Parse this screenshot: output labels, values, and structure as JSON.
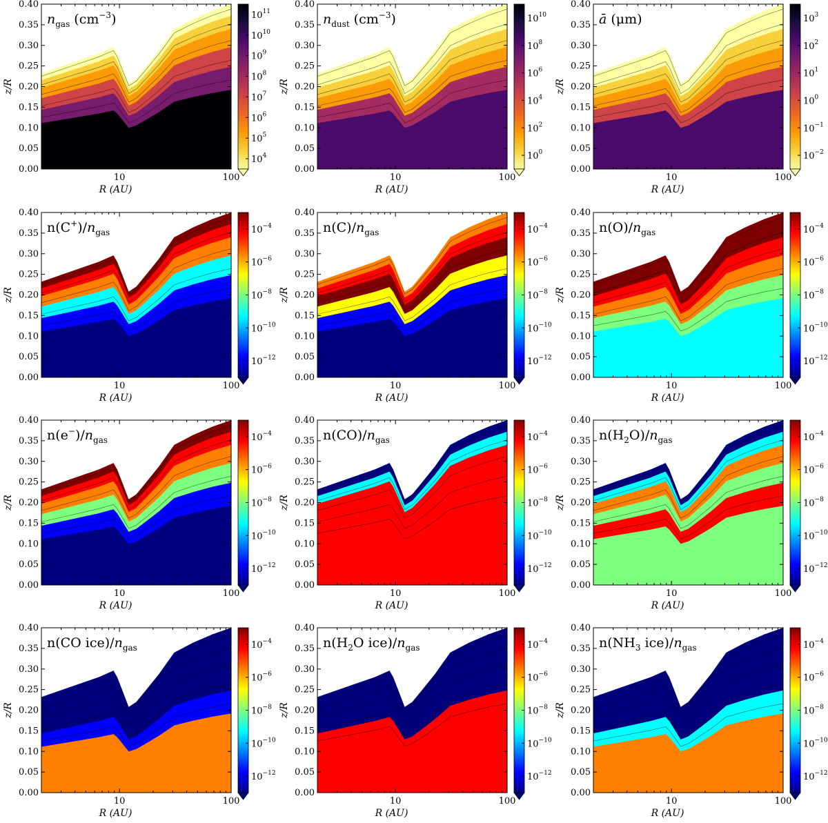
{
  "chart_data": [
    {
      "type": "heatmap",
      "title": "n_gas (cm^-3)",
      "title_main": "n",
      "title_sub": "gas",
      "title_suffix": " (cm",
      "title_sup": "−3",
      "title_end": ")",
      "colormap": "inferno_r",
      "colorbar": {
        "type": "log",
        "labels": [
          {
            "base": "10",
            "exp": "4"
          },
          {
            "base": "10",
            "exp": "5"
          },
          {
            "base": "10",
            "exp": "6"
          },
          {
            "base": "10",
            "exp": "7"
          },
          {
            "base": "10",
            "exp": "8"
          },
          {
            "base": "10",
            "exp": "9"
          },
          {
            "base": "10",
            "exp": "10"
          },
          {
            "base": "10",
            "exp": "11"
          }
        ]
      },
      "xlabel": "R (AU)",
      "ylabel": "z/R",
      "xlim": [
        2,
        100
      ],
      "ylim": [
        0,
        0.4
      ],
      "xticks": [
        "10",
        "100"
      ],
      "yticks": [
        "0.00",
        "0.05",
        "0.10",
        "0.15",
        "0.20",
        "0.25",
        "0.30",
        "0.35",
        "0.40"
      ]
    },
    {
      "type": "heatmap",
      "title": "n_dust (cm^-3)",
      "title_main": "n",
      "title_sub": "dust",
      "title_suffix": " (cm",
      "title_sup": "−3",
      "title_end": ")",
      "colormap": "inferno_r",
      "colorbar": {
        "type": "log",
        "labels": [
          {
            "base": "10",
            "exp": "0"
          },
          {
            "base": "10",
            "exp": "2"
          },
          {
            "base": "10",
            "exp": "4"
          },
          {
            "base": "10",
            "exp": "6"
          },
          {
            "base": "10",
            "exp": "8"
          },
          {
            "base": "10",
            "exp": "10"
          }
        ]
      },
      "xlabel": "R (AU)",
      "ylabel": "z/R",
      "xlim": [
        2,
        100
      ],
      "ylim": [
        0,
        0.4
      ],
      "xticks": [
        "10",
        "100"
      ],
      "yticks": [
        "0.00",
        "0.05",
        "0.10",
        "0.15",
        "0.20",
        "0.25",
        "0.30",
        "0.35",
        "0.40"
      ]
    },
    {
      "type": "heatmap",
      "title": "ā (μm)",
      "title_main": "ā",
      "title_sub": "",
      "title_suffix": " (μm)",
      "title_sup": "",
      "title_end": "",
      "colormap": "inferno_r",
      "colorbar": {
        "type": "log",
        "labels": [
          {
            "base": "10",
            "exp": "−2"
          },
          {
            "base": "10",
            "exp": "−1"
          },
          {
            "base": "10",
            "exp": "0"
          },
          {
            "base": "10",
            "exp": "1"
          },
          {
            "base": "10",
            "exp": "2"
          },
          {
            "base": "10",
            "exp": "3"
          }
        ]
      },
      "xlabel": "R (AU)",
      "ylabel": "z/R",
      "xlim": [
        2,
        100
      ],
      "ylim": [
        0,
        0.4
      ],
      "xticks": [
        "10",
        "100"
      ],
      "yticks": [
        "0.00",
        "0.05",
        "0.10",
        "0.15",
        "0.20",
        "0.25",
        "0.30",
        "0.35",
        "0.40"
      ]
    },
    {
      "type": "heatmap",
      "title": "n(C+)/n_gas",
      "title_main": "n(C",
      "title_sup": "+",
      "title_mid": ")/",
      "title_main2": "n",
      "title_sub": "gas",
      "colormap": "jet",
      "colorbar": {
        "type": "log",
        "labels": [
          {
            "base": "10",
            "exp": "−12"
          },
          {
            "base": "10",
            "exp": "−10"
          },
          {
            "base": "10",
            "exp": "−8"
          },
          {
            "base": "10",
            "exp": "−6"
          },
          {
            "base": "10",
            "exp": "−4"
          }
        ]
      },
      "xlabel": "R (AU)",
      "ylabel": "z/R",
      "xlim": [
        2,
        100
      ],
      "ylim": [
        0,
        0.4
      ],
      "xticks": [
        "10",
        "100"
      ],
      "yticks": [
        "0.00",
        "0.05",
        "0.10",
        "0.15",
        "0.20",
        "0.25",
        "0.30",
        "0.35",
        "0.40"
      ]
    },
    {
      "type": "heatmap",
      "title": "n(C)/n_gas",
      "title_main": "n(C)/",
      "title_sup": "",
      "title_mid": "",
      "title_main2": "n",
      "title_sub": "gas",
      "colormap": "jet",
      "colorbar": {
        "type": "log",
        "labels": [
          {
            "base": "10",
            "exp": "−12"
          },
          {
            "base": "10",
            "exp": "−10"
          },
          {
            "base": "10",
            "exp": "−8"
          },
          {
            "base": "10",
            "exp": "−6"
          },
          {
            "base": "10",
            "exp": "−4"
          }
        ]
      },
      "xlabel": "R (AU)",
      "ylabel": "z/R",
      "xlim": [
        2,
        100
      ],
      "ylim": [
        0,
        0.4
      ],
      "xticks": [
        "10",
        "100"
      ],
      "yticks": [
        "0.00",
        "0.05",
        "0.10",
        "0.15",
        "0.20",
        "0.25",
        "0.30",
        "0.35",
        "0.40"
      ]
    },
    {
      "type": "heatmap",
      "title": "n(O)/n_gas",
      "title_main": "n(O)/",
      "title_sup": "",
      "title_mid": "",
      "title_main2": "n",
      "title_sub": "gas",
      "colormap": "jet",
      "colorbar": {
        "type": "log",
        "labels": [
          {
            "base": "10",
            "exp": "−12"
          },
          {
            "base": "10",
            "exp": "−10"
          },
          {
            "base": "10",
            "exp": "−8"
          },
          {
            "base": "10",
            "exp": "−6"
          },
          {
            "base": "10",
            "exp": "−4"
          }
        ]
      },
      "xlabel": "R (AU)",
      "ylabel": "z/R",
      "xlim": [
        2,
        100
      ],
      "ylim": [
        0,
        0.4
      ],
      "xticks": [
        "10",
        "100"
      ],
      "yticks": [
        "0.00",
        "0.05",
        "0.10",
        "0.15",
        "0.20",
        "0.25",
        "0.30",
        "0.35",
        "0.40"
      ]
    },
    {
      "type": "heatmap",
      "title": "n(e−)/n_gas",
      "title_main": "n(e",
      "title_sup": "−",
      "title_mid": ")/",
      "title_main2": "n",
      "title_sub": "gas",
      "colormap": "jet",
      "colorbar": {
        "type": "log",
        "labels": [
          {
            "base": "10",
            "exp": "−12"
          },
          {
            "base": "10",
            "exp": "−10"
          },
          {
            "base": "10",
            "exp": "−8"
          },
          {
            "base": "10",
            "exp": "−6"
          },
          {
            "base": "10",
            "exp": "−4"
          }
        ]
      },
      "xlabel": "R (AU)",
      "ylabel": "z/R",
      "xlim": [
        2,
        100
      ],
      "ylim": [
        0,
        0.4
      ],
      "xticks": [
        "10",
        "100"
      ],
      "yticks": [
        "0.00",
        "0.05",
        "0.10",
        "0.15",
        "0.20",
        "0.25",
        "0.30",
        "0.35",
        "0.40"
      ]
    },
    {
      "type": "heatmap",
      "title": "n(CO)/n_gas",
      "title_main": "n(CO)/",
      "title_sup": "",
      "title_mid": "",
      "title_main2": "n",
      "title_sub": "gas",
      "colormap": "jet",
      "colorbar": {
        "type": "log",
        "labels": [
          {
            "base": "10",
            "exp": "−12"
          },
          {
            "base": "10",
            "exp": "−10"
          },
          {
            "base": "10",
            "exp": "−8"
          },
          {
            "base": "10",
            "exp": "−6"
          },
          {
            "base": "10",
            "exp": "−4"
          }
        ]
      },
      "xlabel": "R (AU)",
      "ylabel": "z/R",
      "xlim": [
        2,
        100
      ],
      "ylim": [
        0,
        0.4
      ],
      "xticks": [
        "10",
        "100"
      ],
      "yticks": [
        "0.00",
        "0.05",
        "0.10",
        "0.15",
        "0.20",
        "0.25",
        "0.30",
        "0.35",
        "0.40"
      ]
    },
    {
      "type": "heatmap",
      "title": "n(H2O)/n_gas",
      "title_main": "n(H",
      "title_sub0": "2",
      "title_mid": "O)/",
      "title_main2": "n",
      "title_sub": "gas",
      "colormap": "jet",
      "colorbar": {
        "type": "log",
        "labels": [
          {
            "base": "10",
            "exp": "−12"
          },
          {
            "base": "10",
            "exp": "−10"
          },
          {
            "base": "10",
            "exp": "−8"
          },
          {
            "base": "10",
            "exp": "−6"
          },
          {
            "base": "10",
            "exp": "−4"
          }
        ]
      },
      "xlabel": "R (AU)",
      "ylabel": "z/R",
      "xlim": [
        2,
        100
      ],
      "ylim": [
        0,
        0.4
      ],
      "xticks": [
        "10",
        "100"
      ],
      "yticks": [
        "0.00",
        "0.05",
        "0.10",
        "0.15",
        "0.20",
        "0.25",
        "0.30",
        "0.35",
        "0.40"
      ]
    },
    {
      "type": "heatmap",
      "title": "n(CO ice)/n_gas",
      "title_main": "n(CO ice)/",
      "title_sup": "",
      "title_mid": "",
      "title_main2": "n",
      "title_sub": "gas",
      "colormap": "jet",
      "colorbar": {
        "type": "log",
        "labels": [
          {
            "base": "10",
            "exp": "−12"
          },
          {
            "base": "10",
            "exp": "−10"
          },
          {
            "base": "10",
            "exp": "−8"
          },
          {
            "base": "10",
            "exp": "−6"
          },
          {
            "base": "10",
            "exp": "−4"
          }
        ]
      },
      "xlabel": "R (AU)",
      "ylabel": "z/R",
      "xlim": [
        2,
        100
      ],
      "ylim": [
        0,
        0.4
      ],
      "xticks": [
        "10",
        "100"
      ],
      "yticks": [
        "0.00",
        "0.05",
        "0.10",
        "0.15",
        "0.20",
        "0.25",
        "0.30",
        "0.35",
        "0.40"
      ]
    },
    {
      "type": "heatmap",
      "title": "n(H2O ice)/n_gas",
      "title_main": "n(H",
      "title_sub0": "2",
      "title_mid": "O ice)/",
      "title_main2": "n",
      "title_sub": "gas",
      "colormap": "jet",
      "colorbar": {
        "type": "log",
        "labels": [
          {
            "base": "10",
            "exp": "−12"
          },
          {
            "base": "10",
            "exp": "−10"
          },
          {
            "base": "10",
            "exp": "−8"
          },
          {
            "base": "10",
            "exp": "−6"
          },
          {
            "base": "10",
            "exp": "−4"
          }
        ]
      },
      "xlabel": "R (AU)",
      "ylabel": "z/R",
      "xlim": [
        2,
        100
      ],
      "ylim": [
        0,
        0.4
      ],
      "xticks": [
        "10",
        "100"
      ],
      "yticks": [
        "0.00",
        "0.05",
        "0.10",
        "0.15",
        "0.20",
        "0.25",
        "0.30",
        "0.35",
        "0.40"
      ]
    },
    {
      "type": "heatmap",
      "title": "n(NH3 ice)/n_gas",
      "title_main": "n(NH",
      "title_sub0": "3",
      "title_mid": " ice)/",
      "title_main2": "n",
      "title_sub": "gas",
      "colormap": "jet",
      "colorbar": {
        "type": "log",
        "labels": [
          {
            "base": "10",
            "exp": "−12"
          },
          {
            "base": "10",
            "exp": "−10"
          },
          {
            "base": "10",
            "exp": "−8"
          },
          {
            "base": "10",
            "exp": "−6"
          },
          {
            "base": "10",
            "exp": "−4"
          }
        ]
      },
      "xlabel": "R (AU)",
      "ylabel": "z/R",
      "xlim": [
        2,
        100
      ],
      "ylim": [
        0,
        0.4
      ],
      "xticks": [
        "10",
        "100"
      ],
      "yticks": [
        "0.00",
        "0.05",
        "0.10",
        "0.15",
        "0.20",
        "0.25",
        "0.30",
        "0.35",
        "0.40"
      ]
    }
  ]
}
